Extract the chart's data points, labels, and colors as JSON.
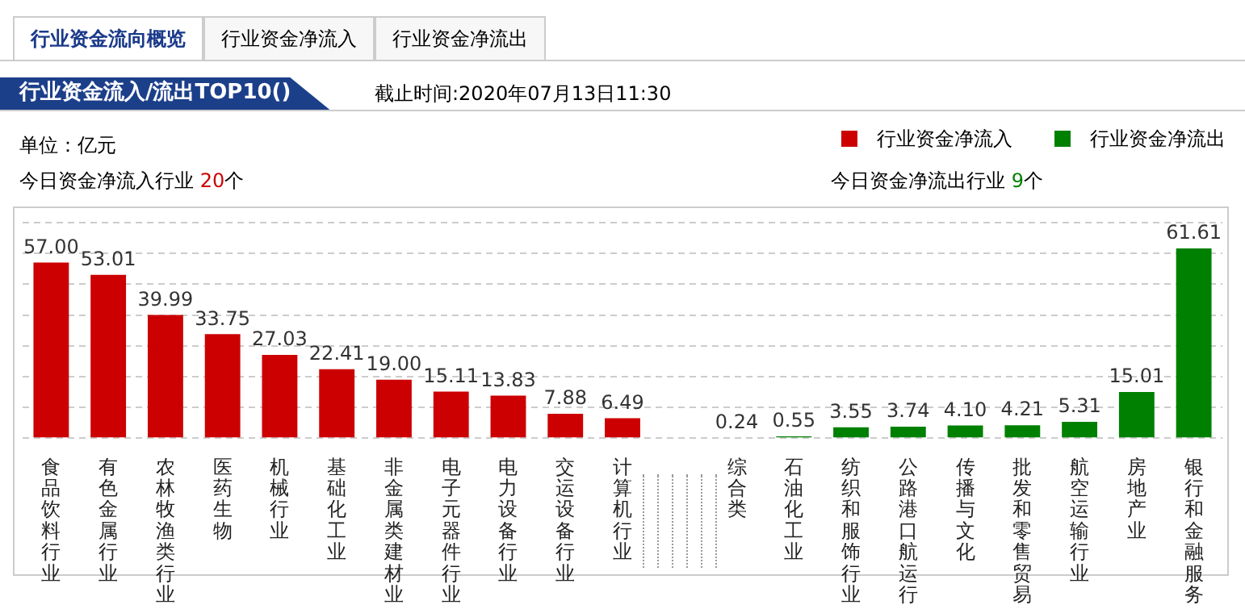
{
  "chart_data": {
    "type": "bar",
    "title": "行业资金流入/流出TOP10()",
    "subtitle": "截止时间:2020年07月13日11:30",
    "annotations": [
      "行业资金流向概览",
      "行业资金净流入",
      "行业资金净流出",
      "单位：亿元",
      "今日资金净流入行业 20个",
      "今日资金净流出行业 9个"
    ],
    "categories": [
      "食品饮料行业",
      "有色金属行业",
      "农林牧渔类行业",
      "医药生物",
      "机械行业",
      "基础化工业",
      "非金属类建材业",
      "电子元器件行业",
      "电力设备行业",
      "交运设备行业",
      "计算机行业",
      null,
      "综合类",
      "石油化工业",
      "纺织和服饰行业",
      "公路港口航运行",
      "传播与文化",
      "批发和零售贸易",
      "航空运输行业",
      "房地产业",
      "银行和金融服务"
    ],
    "series": [
      {
        "name": "行业资金净流入",
        "color": "#cc0000",
        "values": [
          57.0,
          53.01,
          39.99,
          33.75,
          27.03,
          22.41,
          19.0,
          15.11,
          13.83,
          7.88,
          6.49,
          null,
          null,
          null,
          null,
          null,
          null,
          null,
          null,
          null,
          null
        ],
        "value_labels": [
          "57.00",
          "53.01",
          "39.99",
          "33.75",
          "27.03",
          "22.41",
          "19.00",
          "15.11",
          "13.83",
          "7.88",
          "6.49",
          null,
          null,
          null,
          null,
          null,
          null,
          null,
          null,
          null,
          null
        ]
      },
      {
        "name": "行业资金净流出",
        "color": "#008000",
        "values": [
          null,
          null,
          null,
          null,
          null,
          null,
          null,
          null,
          null,
          null,
          null,
          null,
          0.24,
          0.55,
          3.55,
          3.74,
          4.1,
          4.21,
          5.31,
          15.01,
          61.61
        ],
        "value_labels": [
          null,
          null,
          null,
          null,
          null,
          null,
          null,
          null,
          null,
          null,
          null,
          null,
          "0.24",
          "0.55",
          "3.55",
          "3.74",
          "4.10",
          "4.21",
          "5.31",
          "15.01",
          "61.61"
        ]
      }
    ],
    "ylim": [
      0,
      70
    ],
    "yticks": [
      {
        "value": 0,
        "label": null
      },
      {
        "value": 10,
        "label": null
      },
      {
        "value": 20,
        "label": null
      },
      {
        "value": 30,
        "label": null
      },
      {
        "value": 40,
        "label": null
      },
      {
        "value": 50,
        "label": null
      },
      {
        "value": 60,
        "label": null
      },
      {
        "value": 70,
        "label": null
      }
    ],
    "grid": "y",
    "legend": "top right",
    "tick_labels": "x"
  }
}
